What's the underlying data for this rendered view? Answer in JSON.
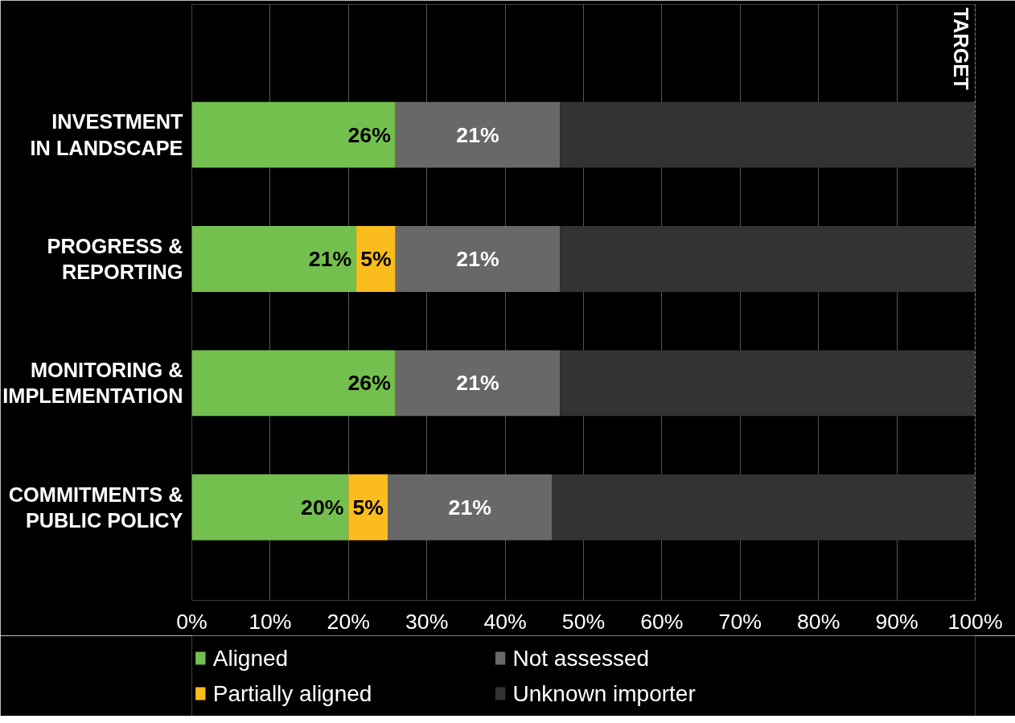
{
  "chart_data": {
    "type": "bar",
    "orientation": "horizontal",
    "stacked": true,
    "categories": [
      "INVESTMENT IN LANDSCAPE",
      "PROGRESS & REPORTING",
      "MONITORING & IMPLEMENTATION",
      "COMMITMENTS & PUBLIC POLICY"
    ],
    "series": [
      {
        "name": "Aligned",
        "color": "#74c04f",
        "values": [
          26,
          21,
          26,
          20
        ],
        "value_labels": [
          "26%",
          "21%",
          "26%",
          "20%"
        ]
      },
      {
        "name": "Partially aligned",
        "color": "#fbbd1d",
        "values": [
          null,
          5,
          null,
          5
        ],
        "value_labels": [
          null,
          "5%",
          null,
          "5%"
        ]
      },
      {
        "name": "Not assessed",
        "color": "#686868",
        "values": [
          21,
          21,
          21,
          21
        ],
        "value_labels": [
          "21%",
          "21%",
          "21%",
          "21%"
        ]
      },
      {
        "name": "Unknown importer",
        "color": "#333333",
        "values": [
          53,
          53,
          53,
          54
        ],
        "value_labels": [
          null,
          null,
          null,
          null
        ]
      }
    ],
    "xlim": [
      0,
      100
    ],
    "xticks": [
      {
        "value": 0,
        "label": "0%"
      },
      {
        "value": 10,
        "label": "10%"
      },
      {
        "value": 20,
        "label": "20%"
      },
      {
        "value": 30,
        "label": "30%"
      },
      {
        "value": 40,
        "label": "40%"
      },
      {
        "value": 50,
        "label": "50%"
      },
      {
        "value": 60,
        "label": "60%"
      },
      {
        "value": 70,
        "label": "70%"
      },
      {
        "value": 80,
        "label": "80%"
      },
      {
        "value": 90,
        "label": "90%"
      },
      {
        "value": 100,
        "label": "100%"
      }
    ],
    "ref_lines": [
      {
        "axis": "x",
        "value": 100,
        "label": "TARGET",
        "color": "#ffffff",
        "line_style": "dotted"
      }
    ],
    "grid": "x",
    "legend": "bottom"
  }
}
